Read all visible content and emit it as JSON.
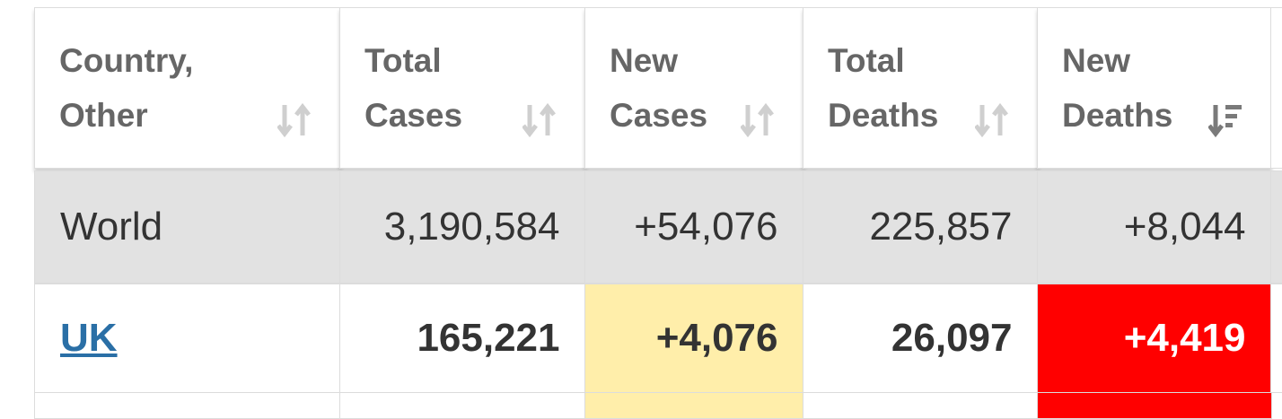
{
  "table": {
    "header": [
      "Country, Other",
      "Total Cases",
      "New Cases",
      "Total Deaths",
      "New Deaths"
    ],
    "rows": [
      [
        "World",
        "3,190,584",
        "+54,076",
        "225,857",
        "+8,044"
      ],
      [
        "UK",
        "165,221",
        "+4,076",
        "26,097",
        "+4,419"
      ]
    ]
  }
}
